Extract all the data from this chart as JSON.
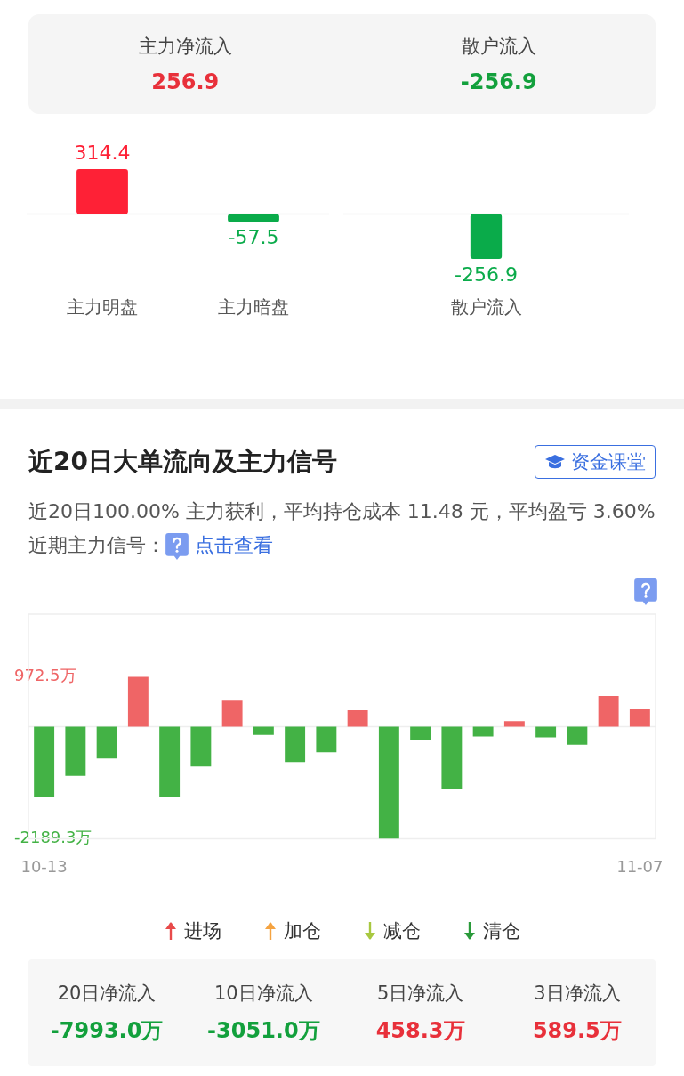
{
  "chart_data": [
    {
      "type": "other",
      "categories": [
        "主力净流入",
        "散户流入"
      ],
      "values": [
        256.9,
        -256.9
      ],
      "data_labels": true
    },
    {
      "type": "bar",
      "categories": [
        "主力明盘",
        "主力暗盘"
      ],
      "values": [
        314.4,
        -57.5
      ],
      "colors": [
        "#fe2136",
        "#0aab4a"
      ],
      "data_labels": true
    },
    {
      "type": "bar",
      "categories": [
        "散户流入"
      ],
      "values": [
        -256.9
      ],
      "colors": [
        "#0aab4a"
      ],
      "data_labels": true
    },
    {
      "type": "bar",
      "title": "近20日大单流向及主力信号",
      "subtitle": "近20日100.00% 主力获利，平均持仓成本 11.48 元，平均盈亏 3.60% 近期主力信号：",
      "annotations": [
        "资金课堂",
        "点击查看",
        "进场",
        "加仓",
        "减仓",
        "清仓"
      ],
      "categories": [
        "10-13",
        null,
        null,
        null,
        null,
        null,
        null,
        null,
        null,
        null,
        null,
        null,
        null,
        null,
        null,
        null,
        null,
        null,
        null,
        "11-07"
      ],
      "values": [
        -1380,
        -960,
        -620,
        972.5,
        -1380,
        -780,
        510,
        -160,
        -690,
        -500,
        320,
        -2189.3,
        -250,
        -1220,
        -190,
        110,
        -210,
        -350,
        600,
        340
      ],
      "colors": [
        "#43b245",
        "#43b245",
        "#43b245",
        "#ef6566",
        "#43b245",
        "#43b245",
        "#ef6566",
        "#43b245",
        "#43b245",
        "#43b245",
        "#ef6566",
        "#43b245",
        "#43b245",
        "#43b245",
        "#43b245",
        "#ef6566",
        "#43b245",
        "#43b245",
        "#ef6566",
        "#ef6566"
      ],
      "ylim": [
        -2189.3,
        2200
      ],
      "yticks": [
        {
          "value": 972.5,
          "label": "972.5万"
        },
        {
          "value": -2189.3,
          "label": "-2189.3万"
        }
      ]
    },
    {
      "type": "other",
      "categories": [
        "20日净流入",
        "10日净流入",
        "5日净流入",
        "3日净流入"
      ],
      "values": [
        -7993.0,
        -3051.0,
        458.3,
        589.5
      ],
      "value_labels": [
        "-7993.0万",
        "-3051.0万",
        "458.3万",
        "589.5万"
      ]
    }
  ]
}
